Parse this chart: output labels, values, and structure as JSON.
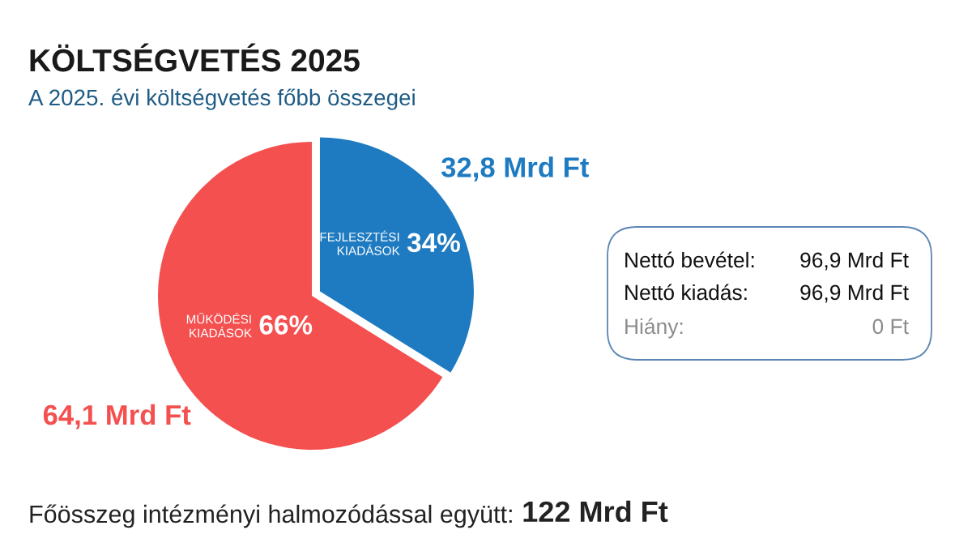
{
  "chart_data": {
    "type": "pie",
    "title": "KÖLTSÉGVETÉS 2025",
    "subtitle": "A 2025. évi költségvetés főbb összegei",
    "categories": [
      "FEJLESZTÉSI KIADÁSOK",
      "MŰKÖDÉSI KIADÁSOK"
    ],
    "values": [
      32.8,
      64.1
    ],
    "colors": [
      "#1f7bc1",
      "#f45050"
    ],
    "value_labels": [
      "32,8 Mrd Ft",
      "64,1 Mrd Ft"
    ],
    "annotations": [
      "34%",
      "66%",
      "Nettó bevétel:",
      "96,9 Mrd Ft",
      "Nettó kiadás:",
      "96,9 Mrd Ft",
      "Hiány:",
      "0 Ft",
      "Főösszeg intézményi halmozódással együtt:",
      "122 Mrd Ft"
    ]
  }
}
